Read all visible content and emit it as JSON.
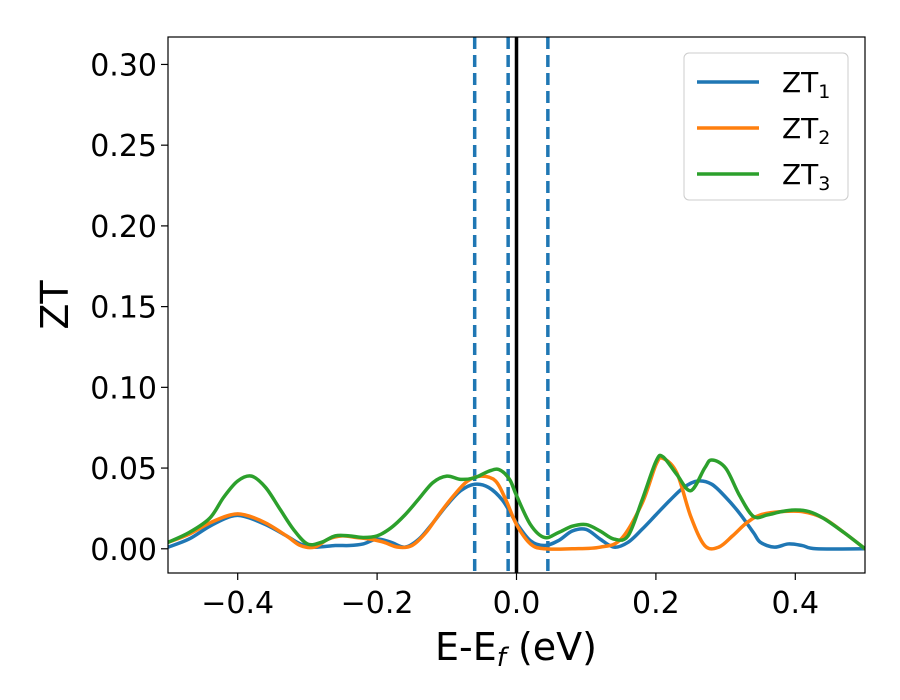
{
  "chart_data": {
    "type": "line",
    "xlabel": "E-E",
    "xlabel_sub": "f",
    "xlabel_unit": " (eV)",
    "ylabel": "ZT",
    "xlim": [
      -0.5,
      0.5
    ],
    "ylim": [
      -0.015,
      0.317
    ],
    "xticks": [
      -0.4,
      -0.2,
      0.0,
      0.2,
      0.4
    ],
    "xtick_labels": [
      "−0.4",
      "−0.2",
      "0.0",
      "0.2",
      "0.4"
    ],
    "yticks": [
      0.0,
      0.05,
      0.1,
      0.15,
      0.2,
      0.25,
      0.3
    ],
    "ytick_labels": [
      "0.00",
      "0.05",
      "0.10",
      "0.15",
      "0.20",
      "0.25",
      "0.30"
    ],
    "grid": false,
    "legend_position": "top-right",
    "vertical_lines": [
      {
        "x": -0.06,
        "style": "dashed",
        "color": "#1f77b4"
      },
      {
        "x": -0.012,
        "style": "dashed",
        "color": "#1f77b4"
      },
      {
        "x": 0.045,
        "style": "dashed",
        "color": "#1f77b4"
      },
      {
        "x": 0.0,
        "style": "solid",
        "color": "#000000"
      }
    ],
    "series": [
      {
        "name": "ZT",
        "name_sub": "1",
        "color": "#1f77b4",
        "points": [
          [
            -0.5,
            0.001
          ],
          [
            -0.47,
            0.006
          ],
          [
            -0.44,
            0.014
          ],
          [
            -0.41,
            0.02
          ],
          [
            -0.39,
            0.02
          ],
          [
            -0.36,
            0.015
          ],
          [
            -0.33,
            0.008
          ],
          [
            -0.31,
            0.003
          ],
          [
            -0.29,
            0.001
          ],
          [
            -0.26,
            0.002
          ],
          [
            -0.24,
            0.002
          ],
          [
            -0.22,
            0.003
          ],
          [
            -0.2,
            0.006
          ],
          [
            -0.18,
            0.004
          ],
          [
            -0.16,
            0.001
          ],
          [
            -0.14,
            0.006
          ],
          [
            -0.12,
            0.016
          ],
          [
            -0.1,
            0.027
          ],
          [
            -0.08,
            0.036
          ],
          [
            -0.06,
            0.04
          ],
          [
            -0.04,
            0.038
          ],
          [
            -0.02,
            0.03
          ],
          [
            0.0,
            0.016
          ],
          [
            0.02,
            0.005
          ],
          [
            0.04,
            0.002
          ],
          [
            0.06,
            0.005
          ],
          [
            0.08,
            0.011
          ],
          [
            0.1,
            0.012
          ],
          [
            0.12,
            0.006
          ],
          [
            0.14,
            0.001
          ],
          [
            0.16,
            0.004
          ],
          [
            0.18,
            0.012
          ],
          [
            0.2,
            0.021
          ],
          [
            0.22,
            0.03
          ],
          [
            0.24,
            0.038
          ],
          [
            0.26,
            0.042
          ],
          [
            0.28,
            0.04
          ],
          [
            0.3,
            0.032
          ],
          [
            0.32,
            0.022
          ],
          [
            0.34,
            0.01
          ],
          [
            0.35,
            0.004
          ],
          [
            0.37,
            0.001
          ],
          [
            0.39,
            0.003
          ],
          [
            0.41,
            0.002
          ],
          [
            0.43,
            0.0
          ],
          [
            0.5,
            0.0
          ]
        ]
      },
      {
        "name": "ZT",
        "name_sub": "2",
        "color": "#ff7f0e",
        "points": [
          [
            -0.5,
            0.004
          ],
          [
            -0.47,
            0.009
          ],
          [
            -0.44,
            0.016
          ],
          [
            -0.41,
            0.021
          ],
          [
            -0.39,
            0.021
          ],
          [
            -0.36,
            0.016
          ],
          [
            -0.33,
            0.008
          ],
          [
            -0.31,
            0.002
          ],
          [
            -0.29,
            0.001
          ],
          [
            -0.27,
            0.006
          ],
          [
            -0.25,
            0.008
          ],
          [
            -0.23,
            0.007
          ],
          [
            -0.21,
            0.006
          ],
          [
            -0.19,
            0.004
          ],
          [
            -0.17,
            0.001
          ],
          [
            -0.15,
            0.002
          ],
          [
            -0.13,
            0.01
          ],
          [
            -0.11,
            0.022
          ],
          [
            -0.09,
            0.033
          ],
          [
            -0.07,
            0.042
          ],
          [
            -0.05,
            0.045
          ],
          [
            -0.03,
            0.042
          ],
          [
            -0.015,
            0.03
          ],
          [
            0.0,
            0.015
          ],
          [
            0.02,
            0.003
          ],
          [
            0.04,
            0.0
          ],
          [
            0.08,
            0.0
          ],
          [
            0.12,
            0.001
          ],
          [
            0.15,
            0.006
          ],
          [
            0.18,
            0.028
          ],
          [
            0.2,
            0.052
          ],
          [
            0.21,
            0.056
          ],
          [
            0.23,
            0.047
          ],
          [
            0.25,
            0.02
          ],
          [
            0.27,
            0.002
          ],
          [
            0.29,
            0.001
          ],
          [
            0.31,
            0.008
          ],
          [
            0.33,
            0.016
          ],
          [
            0.35,
            0.021
          ],
          [
            0.38,
            0.023
          ],
          [
            0.41,
            0.023
          ],
          [
            0.44,
            0.019
          ],
          [
            0.47,
            0.01
          ],
          [
            0.5,
            0.0
          ]
        ]
      },
      {
        "name": "ZT",
        "name_sub": "3",
        "color": "#2ca02c",
        "points": [
          [
            -0.5,
            0.004
          ],
          [
            -0.47,
            0.01
          ],
          [
            -0.44,
            0.019
          ],
          [
            -0.42,
            0.032
          ],
          [
            -0.4,
            0.042
          ],
          [
            -0.38,
            0.045
          ],
          [
            -0.36,
            0.038
          ],
          [
            -0.34,
            0.025
          ],
          [
            -0.32,
            0.012
          ],
          [
            -0.3,
            0.003
          ],
          [
            -0.28,
            0.004
          ],
          [
            -0.26,
            0.008
          ],
          [
            -0.24,
            0.008
          ],
          [
            -0.22,
            0.007
          ],
          [
            -0.2,
            0.008
          ],
          [
            -0.18,
            0.013
          ],
          [
            -0.16,
            0.021
          ],
          [
            -0.14,
            0.031
          ],
          [
            -0.12,
            0.041
          ],
          [
            -0.1,
            0.045
          ],
          [
            -0.08,
            0.043
          ],
          [
            -0.06,
            0.044
          ],
          [
            -0.04,
            0.048
          ],
          [
            -0.025,
            0.049
          ],
          [
            -0.01,
            0.043
          ],
          [
            0.0,
            0.033
          ],
          [
            0.02,
            0.015
          ],
          [
            0.04,
            0.007
          ],
          [
            0.06,
            0.01
          ],
          [
            0.08,
            0.014
          ],
          [
            0.1,
            0.015
          ],
          [
            0.12,
            0.011
          ],
          [
            0.14,
            0.006
          ],
          [
            0.16,
            0.008
          ],
          [
            0.18,
            0.03
          ],
          [
            0.2,
            0.054
          ],
          [
            0.21,
            0.057
          ],
          [
            0.23,
            0.046
          ],
          [
            0.25,
            0.036
          ],
          [
            0.27,
            0.05
          ],
          [
            0.28,
            0.055
          ],
          [
            0.3,
            0.05
          ],
          [
            0.32,
            0.033
          ],
          [
            0.34,
            0.02
          ],
          [
            0.36,
            0.021
          ],
          [
            0.38,
            0.023
          ],
          [
            0.4,
            0.024
          ],
          [
            0.42,
            0.023
          ],
          [
            0.44,
            0.019
          ],
          [
            0.47,
            0.01
          ],
          [
            0.5,
            0.0
          ]
        ]
      }
    ]
  }
}
